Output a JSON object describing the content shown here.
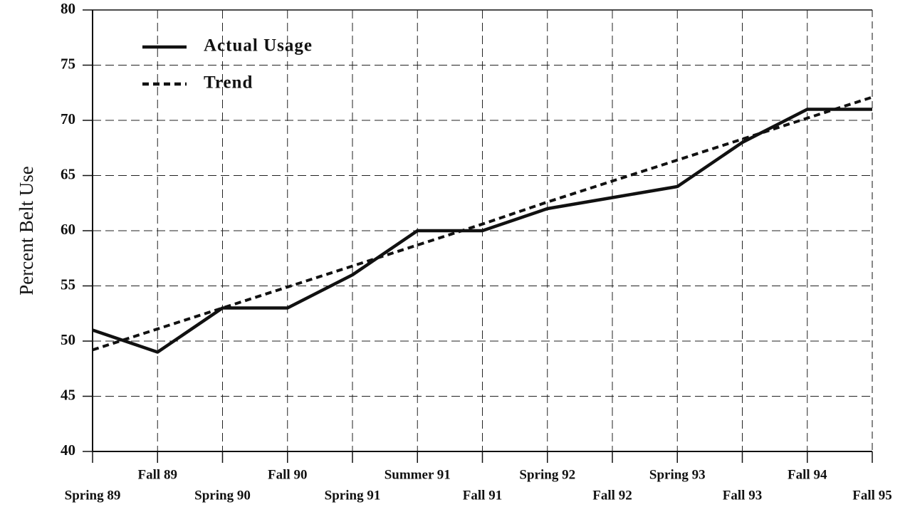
{
  "chart_data": {
    "type": "line",
    "y_label": "Percent Belt Use",
    "categories": [
      "Spring 89",
      "Fall 89",
      "Spring 90",
      "Fall 90",
      "Spring 91",
      "Summer 91",
      "Fall 91",
      "Spring 92",
      "Fall 92",
      "Spring 93",
      "Fall 93",
      "Fall 94",
      "Fall 95"
    ],
    "series": [
      {
        "name": "Actual Usage",
        "color": "#111111",
        "style": "solid",
        "values": [
          51,
          49,
          53,
          53,
          56,
          60,
          60,
          62,
          63,
          64,
          68,
          71,
          71
        ]
      },
      {
        "name": "Trend",
        "color": "#111111",
        "style": "dashed",
        "values": [
          49.2,
          51.1,
          53.0,
          54.9,
          56.8,
          58.7,
          60.6,
          62.6,
          64.5,
          66.4,
          68.3,
          70.2,
          72.1
        ]
      }
    ],
    "ylim": [
      40,
      80
    ],
    "yticks": [
      40,
      45,
      50,
      55,
      60,
      65,
      70,
      75,
      80
    ],
    "grid": true,
    "legend": "top-left"
  }
}
